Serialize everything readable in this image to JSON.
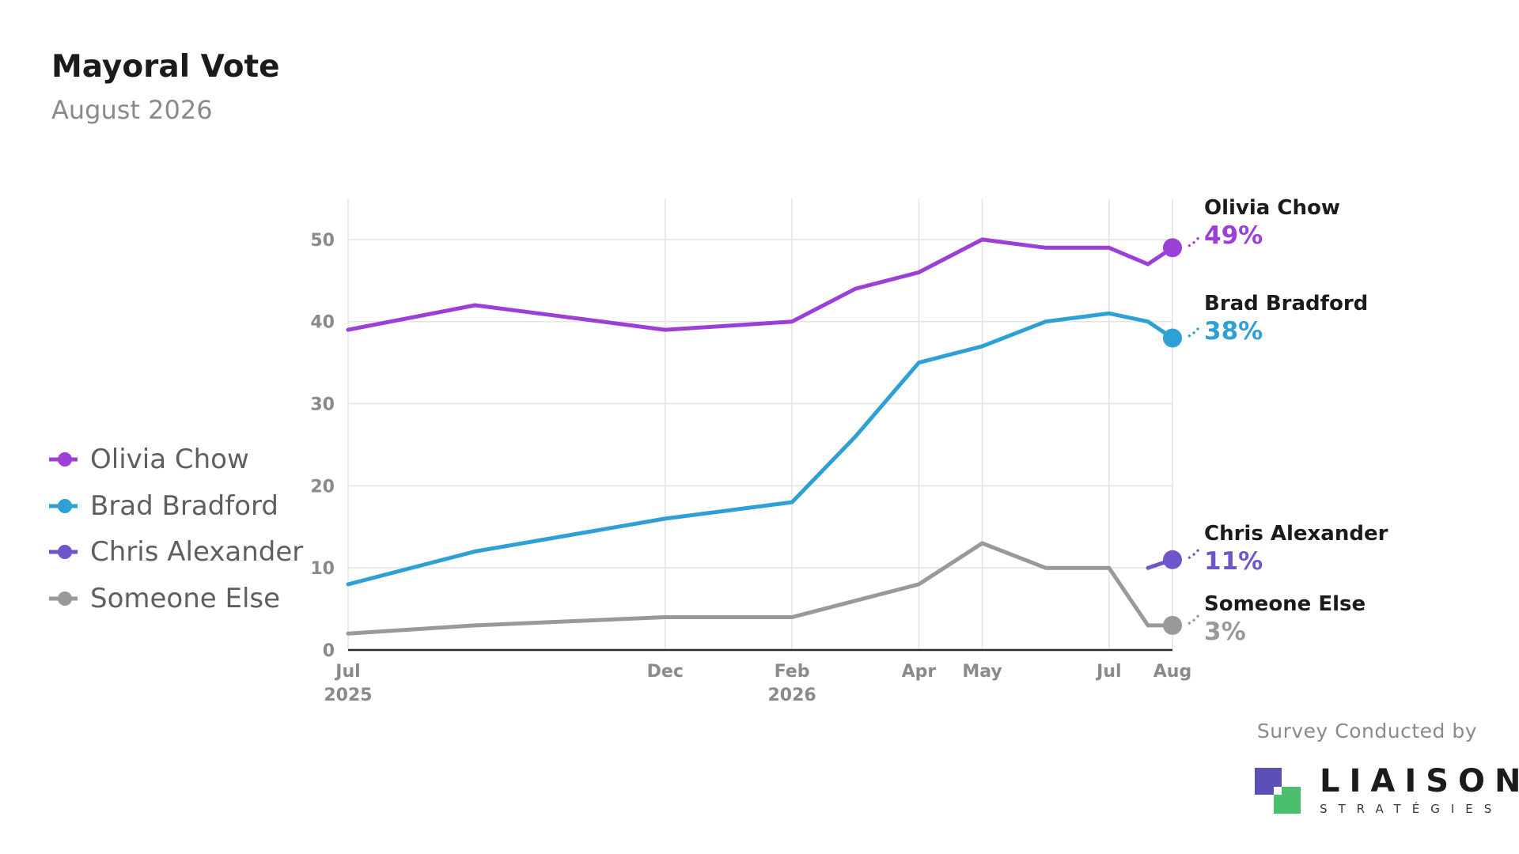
{
  "title": "Mayoral Vote",
  "subtitle": "August 2026",
  "chart_data": {
    "type": "line",
    "title": "Mayoral Vote",
    "subtitle": "August 2026",
    "xlabel": "",
    "ylabel": "",
    "x_axis": {
      "range": [
        "2025-07",
        "2026-08"
      ],
      "ticks": [
        {
          "date": "2025-07",
          "label": "Jul",
          "year": "2025"
        },
        {
          "date": "2025-12",
          "label": "Dec",
          "year": ""
        },
        {
          "date": "2026-02",
          "label": "Feb",
          "year": "2026"
        },
        {
          "date": "2026-04",
          "label": "Apr",
          "year": ""
        },
        {
          "date": "2026-05",
          "label": "May",
          "year": ""
        },
        {
          "date": "2026-07",
          "label": "Jul",
          "year": ""
        },
        {
          "date": "2026-08",
          "label": "Aug",
          "year": ""
        }
      ]
    },
    "y_axis": {
      "range": [
        0,
        55
      ],
      "ticks": [
        0,
        10,
        20,
        30,
        40,
        50
      ]
    },
    "grid": true,
    "legend_position": "left",
    "series": [
      {
        "name": "Olivia Chow",
        "color": "#9b3fd6",
        "end_label": "49%",
        "points": [
          [
            "2025-07",
            39
          ],
          [
            "2025-09",
            42
          ],
          [
            "2025-12",
            39
          ],
          [
            "2026-02",
            40
          ],
          [
            "2026-03",
            44
          ],
          [
            "2026-04",
            46
          ],
          [
            "2026-05",
            50
          ],
          [
            "2026-06",
            49
          ],
          [
            "2026-07",
            49
          ],
          [
            "2026-07-20",
            47
          ],
          [
            "2026-08",
            49
          ]
        ]
      },
      {
        "name": "Brad Bradford",
        "color": "#2fa0d5",
        "end_label": "38%",
        "points": [
          [
            "2025-07",
            8
          ],
          [
            "2025-09",
            12
          ],
          [
            "2025-12",
            16
          ],
          [
            "2026-02",
            18
          ],
          [
            "2026-03",
            26
          ],
          [
            "2026-04",
            35
          ],
          [
            "2026-05",
            37
          ],
          [
            "2026-06",
            40
          ],
          [
            "2026-07",
            41
          ],
          [
            "2026-07-20",
            40
          ],
          [
            "2026-08",
            38
          ]
        ]
      },
      {
        "name": "Chris Alexander",
        "color": "#6e55c9",
        "end_label": "11%",
        "points": [
          [
            "2026-07-20",
            10
          ],
          [
            "2026-08",
            11
          ]
        ]
      },
      {
        "name": "Someone Else",
        "color": "#999999",
        "end_label": "3%",
        "points": [
          [
            "2025-07",
            2
          ],
          [
            "2025-09",
            3
          ],
          [
            "2025-12",
            4
          ],
          [
            "2026-02",
            4
          ],
          [
            "2026-03",
            6
          ],
          [
            "2026-04",
            8
          ],
          [
            "2026-05",
            13
          ],
          [
            "2026-06",
            10
          ],
          [
            "2026-07",
            10
          ],
          [
            "2026-07-20",
            3
          ],
          [
            "2026-08",
            3
          ]
        ]
      }
    ]
  },
  "source": {
    "label": "Survey Conducted by",
    "brand_name": "LIAISON",
    "brand_sub": "STRATÉGIES",
    "brand_colors": {
      "primary": "#5b4fb8",
      "secondary": "#4cbf6e"
    }
  }
}
